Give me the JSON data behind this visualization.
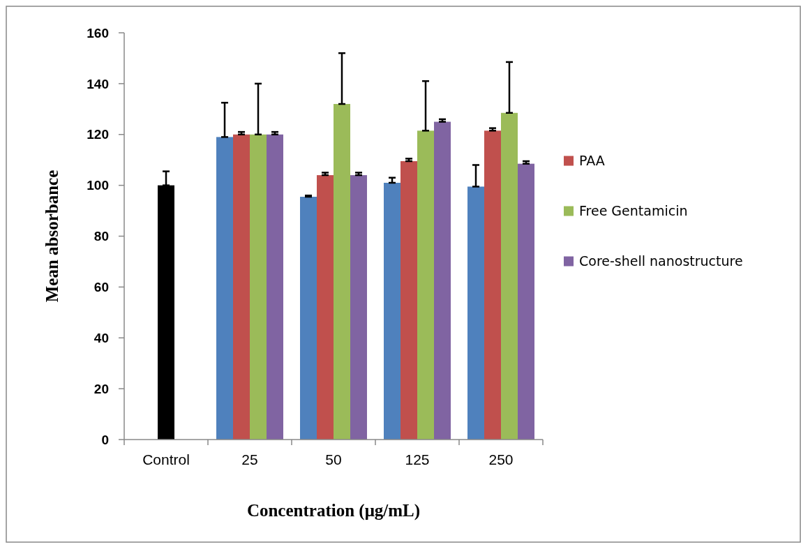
{
  "chart_data": {
    "type": "bar",
    "xlabel": "Concentration (μg/mL)",
    "ylabel": "Mean absorbance",
    "categories": [
      "Control",
      "25",
      "50",
      "125",
      "250"
    ],
    "ylim": [
      0,
      160
    ],
    "yticks": [
      0,
      20,
      40,
      60,
      80,
      100,
      120,
      140,
      160
    ],
    "grid": false,
    "legend": "right",
    "series": [
      {
        "color": "#000000",
        "values": [
          100,
          null,
          null,
          null,
          null
        ],
        "errors": [
          [
            100,
            105.5
          ],
          null,
          null,
          null,
          null
        ]
      },
      {
        "color": "#4f81bd",
        "values": [
          null,
          119,
          95.5,
          101,
          99.5
        ],
        "errors": [
          null,
          [
            119,
            132.5
          ],
          [
            95.5,
            96
          ],
          [
            101,
            103
          ],
          [
            99.5,
            108
          ]
        ]
      },
      {
        "name": "PAA",
        "color": "#c0504d",
        "values": [
          null,
          120,
          104,
          109.5,
          121.5
        ],
        "errors": [
          null,
          [
            120,
            121
          ],
          [
            104,
            105
          ],
          [
            109.5,
            110.5
          ],
          [
            121.5,
            122.5
          ]
        ]
      },
      {
        "name": "Free Gentamicin",
        "color": "#9bbb59",
        "values": [
          null,
          120,
          132,
          121.5,
          128.5
        ],
        "errors": [
          null,
          [
            120,
            140
          ],
          [
            132,
            152
          ],
          [
            121.5,
            141
          ],
          [
            128.5,
            148.5
          ]
        ]
      },
      {
        "name": "Core-shell nanostructure",
        "color": "#8064a2",
        "values": [
          null,
          120,
          104,
          125,
          108.5
        ],
        "errors": [
          null,
          [
            120,
            121
          ],
          [
            104,
            105
          ],
          [
            125,
            126
          ],
          [
            108.5,
            109.5
          ]
        ]
      }
    ]
  }
}
